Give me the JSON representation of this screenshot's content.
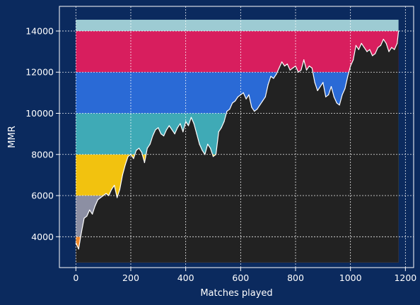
{
  "chart_data": {
    "type": "area",
    "title": "",
    "xlabel": "Matches played",
    "ylabel": "MMR",
    "xlim": [
      -60,
      1230
    ],
    "ylim": [
      2500,
      15200
    ],
    "grid": true,
    "x_ticks": [
      0,
      200,
      400,
      600,
      800,
      1000,
      1200
    ],
    "y_ticks": [
      4000,
      6000,
      8000,
      10000,
      12000,
      14000
    ],
    "x_tick_labels": [
      "0",
      "200",
      "400",
      "600",
      "800",
      "1000",
      "1200"
    ],
    "y_tick_labels": [
      "4000",
      "6000",
      "8000",
      "10000",
      "12000",
      "14000"
    ],
    "x_range": [
      0,
      1175
    ],
    "baseline": 2750,
    "bands": [
      {
        "from": 2750,
        "to": 4000,
        "color": "#f08a2c"
      },
      {
        "from": 4000,
        "to": 6000,
        "color": "#8c8fa3"
      },
      {
        "from": 6000,
        "to": 8000,
        "color": "#f2c20f"
      },
      {
        "from": 8000,
        "to": 10000,
        "color": "#3faab6"
      },
      {
        "from": 10000,
        "to": 12000,
        "color": "#2a6ad6"
      },
      {
        "from": 12000,
        "to": 14000,
        "color": "#d81e5e"
      },
      {
        "from": 14000,
        "to": 14550,
        "color": "#9dcbd3"
      }
    ],
    "series": [
      {
        "line_color": "#ffffff",
        "fill_color": "#222222",
        "x": [
          0,
          10,
          20,
          30,
          40,
          50,
          60,
          70,
          80,
          90,
          100,
          110,
          120,
          130,
          140,
          150,
          160,
          170,
          180,
          190,
          200,
          210,
          220,
          230,
          240,
          250,
          260,
          270,
          280,
          290,
          300,
          310,
          320,
          330,
          340,
          350,
          360,
          370,
          380,
          390,
          400,
          410,
          420,
          430,
          440,
          450,
          460,
          470,
          480,
          490,
          500,
          510,
          520,
          530,
          540,
          550,
          560,
          570,
          580,
          590,
          600,
          610,
          620,
          630,
          640,
          650,
          660,
          670,
          680,
          690,
          700,
          710,
          720,
          730,
          740,
          750,
          760,
          770,
          780,
          790,
          800,
          810,
          820,
          830,
          840,
          850,
          860,
          870,
          880,
          890,
          900,
          910,
          920,
          930,
          940,
          950,
          960,
          970,
          980,
          990,
          1000,
          1010,
          1020,
          1030,
          1040,
          1050,
          1060,
          1070,
          1080,
          1090,
          1100,
          1110,
          1120,
          1130,
          1140,
          1150,
          1160,
          1170,
          1175
        ],
        "values": [
          3700,
          3400,
          4200,
          4900,
          5000,
          5300,
          5100,
          5500,
          5800,
          5900,
          6000,
          6100,
          6000,
          6300,
          6500,
          5900,
          6300,
          7000,
          7500,
          7900,
          8000,
          7800,
          8200,
          8300,
          8100,
          7600,
          8300,
          8500,
          8900,
          9200,
          9300,
          9000,
          8900,
          9200,
          9400,
          9200,
          9000,
          9300,
          9500,
          9100,
          9600,
          9400,
          9800,
          9500,
          9000,
          8500,
          8200,
          8000,
          8500,
          8300,
          7900,
          8000,
          9100,
          9300,
          9600,
          10100,
          10200,
          10500,
          10600,
          10800,
          10900,
          11000,
          10700,
          10900,
          10300,
          10100,
          10200,
          10400,
          10600,
          10800,
          11400,
          11800,
          11700,
          11900,
          12200,
          12500,
          12300,
          12400,
          12100,
          12200,
          12300,
          12000,
          12100,
          12600,
          12100,
          12300,
          12200,
          11500,
          11100,
          11300,
          11500,
          10800,
          10900,
          11300,
          10800,
          10500,
          10400,
          10900,
          11200,
          11800,
          12300,
          12600,
          13300,
          13100,
          13400,
          13200,
          13000,
          13100,
          12800,
          12900,
          13200,
          13300,
          13600,
          13400,
          13000,
          13200,
          13100,
          13400,
          14000
        ]
      }
    ]
  }
}
